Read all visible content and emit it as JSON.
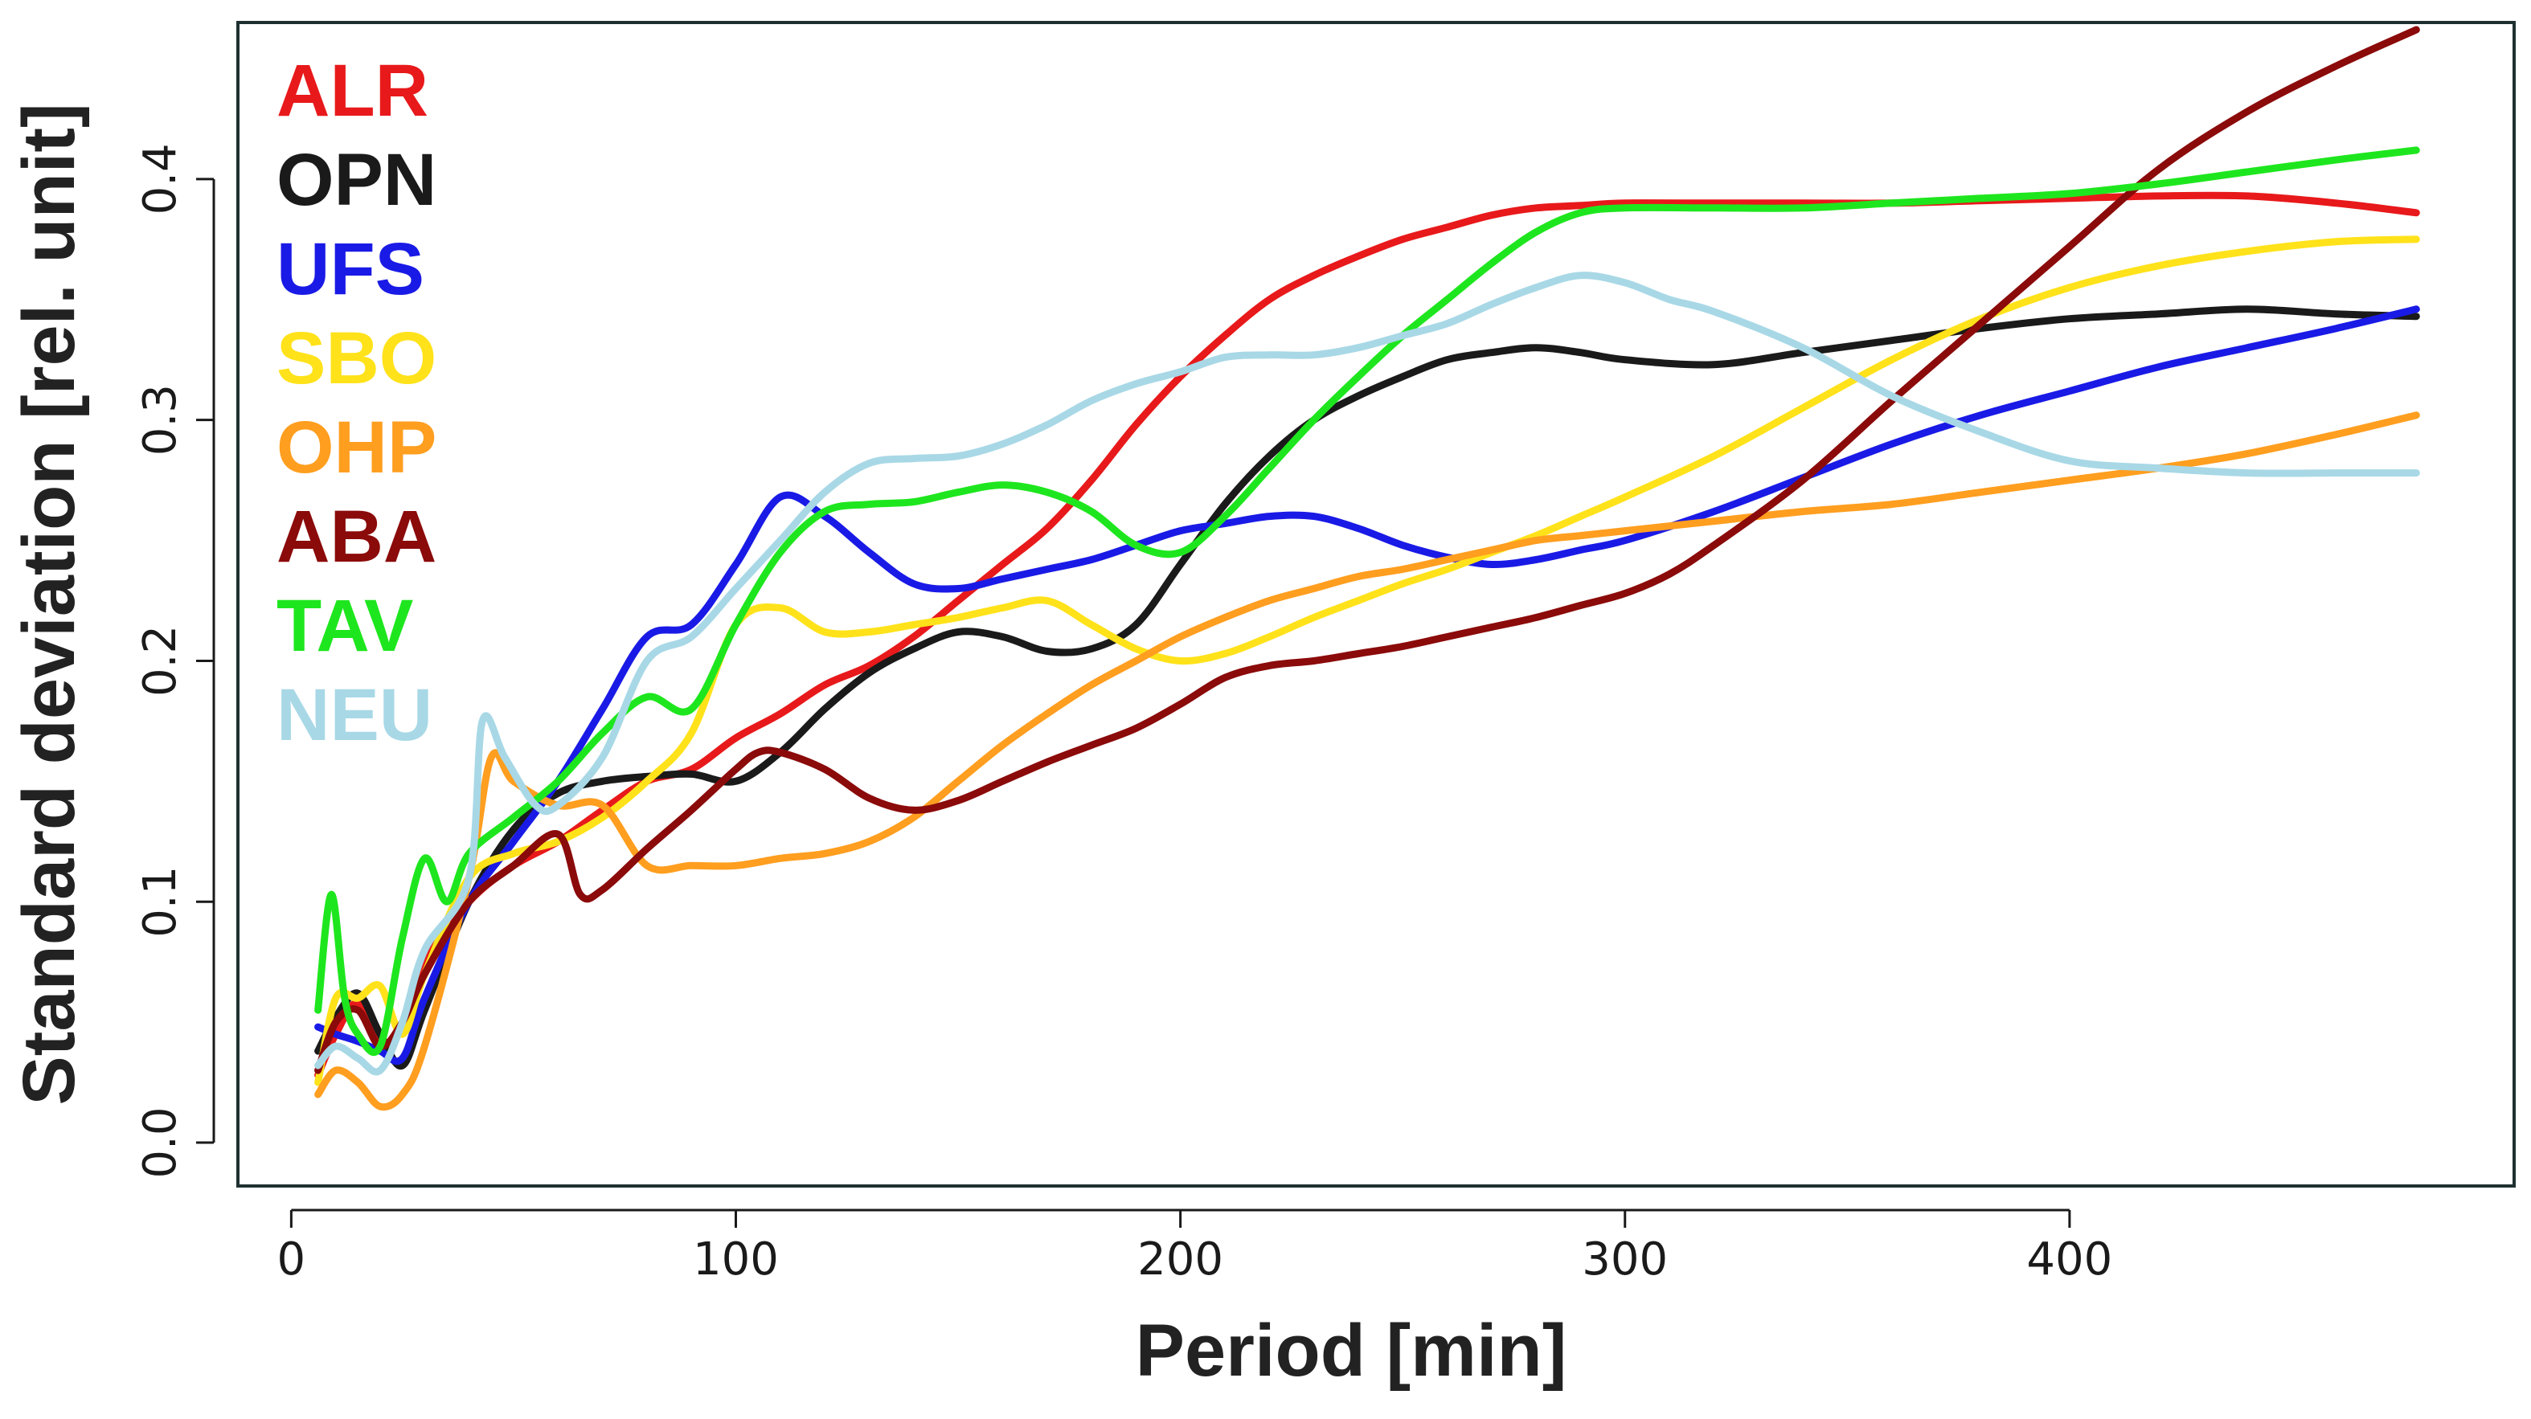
{
  "chart_data": {
    "type": "line",
    "xlabel": "Period [min]",
    "ylabel": "Standard deviation [rel. unit]",
    "xlim": [
      -12,
      500
    ],
    "ylim": [
      -0.018,
      0.465
    ],
    "xticks": [
      0,
      100,
      200,
      300,
      400
    ],
    "xtick_labels": [
      "0",
      "100",
      "200",
      "300",
      "400"
    ],
    "yticks": [
      0.0,
      0.1,
      0.2,
      0.3,
      0.4
    ],
    "ytick_labels": [
      "0.0",
      "0.1",
      "0.2",
      "0.3",
      "0.4"
    ],
    "grid": false,
    "legend_position": "top-left",
    "series": [
      {
        "name": "ALR",
        "color": "#e8191b",
        "x": [
          6,
          10,
          15,
          20,
          25,
          30,
          40,
          50,
          60,
          70,
          80,
          90,
          100,
          110,
          120,
          130,
          140,
          150,
          160,
          170,
          180,
          190,
          200,
          210,
          220,
          230,
          240,
          250,
          260,
          270,
          280,
          290,
          300,
          320,
          340,
          360,
          380,
          400,
          420,
          440,
          460,
          478
        ],
        "y": [
          0.028,
          0.045,
          0.058,
          0.04,
          0.048,
          0.075,
          0.1,
          0.115,
          0.125,
          0.138,
          0.15,
          0.155,
          0.168,
          0.178,
          0.19,
          0.198,
          0.21,
          0.225,
          0.24,
          0.255,
          0.275,
          0.298,
          0.318,
          0.335,
          0.35,
          0.36,
          0.368,
          0.375,
          0.38,
          0.385,
          0.388,
          0.389,
          0.39,
          0.39,
          0.39,
          0.39,
          0.391,
          0.392,
          0.393,
          0.393,
          0.39,
          0.386
        ]
      },
      {
        "name": "OPN",
        "color": "#1a1a1a",
        "x": [
          6,
          10,
          15,
          20,
          25,
          30,
          40,
          50,
          60,
          70,
          80,
          90,
          100,
          110,
          120,
          130,
          140,
          150,
          160,
          170,
          180,
          190,
          200,
          210,
          220,
          230,
          240,
          250,
          260,
          270,
          280,
          290,
          300,
          320,
          340,
          360,
          380,
          400,
          420,
          440,
          460,
          478
        ],
        "y": [
          0.038,
          0.052,
          0.062,
          0.045,
          0.032,
          0.055,
          0.1,
          0.13,
          0.145,
          0.15,
          0.152,
          0.153,
          0.15,
          0.162,
          0.18,
          0.195,
          0.205,
          0.212,
          0.21,
          0.204,
          0.205,
          0.215,
          0.24,
          0.265,
          0.285,
          0.3,
          0.31,
          0.318,
          0.325,
          0.328,
          0.33,
          0.328,
          0.325,
          0.323,
          0.328,
          0.333,
          0.338,
          0.342,
          0.344,
          0.346,
          0.344,
          0.343
        ]
      },
      {
        "name": "UFS",
        "color": "#1a1ae6",
        "x": [
          6,
          10,
          15,
          20,
          25,
          30,
          40,
          50,
          60,
          70,
          80,
          90,
          100,
          110,
          120,
          130,
          140,
          150,
          160,
          170,
          180,
          190,
          200,
          210,
          220,
          230,
          240,
          250,
          260,
          270,
          280,
          290,
          300,
          320,
          340,
          360,
          380,
          400,
          420,
          440,
          460,
          478
        ],
        "y": [
          0.048,
          0.045,
          0.042,
          0.038,
          0.035,
          0.06,
          0.1,
          0.125,
          0.15,
          0.18,
          0.21,
          0.215,
          0.24,
          0.268,
          0.26,
          0.245,
          0.232,
          0.23,
          0.234,
          0.238,
          0.242,
          0.248,
          0.254,
          0.257,
          0.26,
          0.26,
          0.255,
          0.248,
          0.243,
          0.24,
          0.242,
          0.246,
          0.25,
          0.262,
          0.276,
          0.29,
          0.302,
          0.312,
          0.322,
          0.33,
          0.338,
          0.346
        ]
      },
      {
        "name": "SBO",
        "color": "#ffe21a",
        "x": [
          6,
          10,
          15,
          20,
          25,
          30,
          40,
          50,
          60,
          70,
          80,
          90,
          100,
          110,
          120,
          130,
          140,
          150,
          160,
          170,
          180,
          190,
          200,
          210,
          220,
          230,
          240,
          250,
          260,
          270,
          280,
          290,
          300,
          320,
          340,
          360,
          380,
          400,
          420,
          440,
          460,
          478
        ],
        "y": [
          0.025,
          0.06,
          0.06,
          0.065,
          0.045,
          0.07,
          0.11,
          0.12,
          0.125,
          0.135,
          0.15,
          0.17,
          0.215,
          0.222,
          0.212,
          0.212,
          0.215,
          0.218,
          0.222,
          0.225,
          0.215,
          0.205,
          0.2,
          0.203,
          0.21,
          0.218,
          0.225,
          0.232,
          0.238,
          0.245,
          0.252,
          0.26,
          0.268,
          0.285,
          0.305,
          0.325,
          0.342,
          0.355,
          0.364,
          0.37,
          0.374,
          0.375
        ]
      },
      {
        "name": "OHP",
        "color": "#ff9e1f",
        "x": [
          6,
          10,
          15,
          20,
          25,
          30,
          40,
          45,
          50,
          60,
          70,
          80,
          90,
          100,
          110,
          120,
          130,
          140,
          150,
          160,
          170,
          180,
          190,
          200,
          210,
          220,
          230,
          240,
          250,
          260,
          270,
          280,
          290,
          300,
          320,
          340,
          360,
          380,
          400,
          420,
          440,
          460,
          478
        ],
        "y": [
          0.02,
          0.03,
          0.025,
          0.015,
          0.02,
          0.04,
          0.11,
          0.16,
          0.15,
          0.14,
          0.14,
          0.115,
          0.115,
          0.115,
          0.118,
          0.12,
          0.125,
          0.135,
          0.15,
          0.165,
          0.178,
          0.19,
          0.2,
          0.21,
          0.218,
          0.225,
          0.23,
          0.235,
          0.238,
          0.242,
          0.246,
          0.25,
          0.252,
          0.254,
          0.258,
          0.262,
          0.265,
          0.27,
          0.275,
          0.28,
          0.286,
          0.294,
          0.302
        ]
      },
      {
        "name": "ABA",
        "color": "#8b0a0a",
        "x": [
          6,
          10,
          15,
          20,
          25,
          30,
          40,
          50,
          60,
          65,
          70,
          80,
          90,
          100,
          105,
          110,
          120,
          130,
          140,
          150,
          160,
          170,
          180,
          190,
          200,
          210,
          220,
          230,
          240,
          250,
          260,
          270,
          280,
          290,
          300,
          310,
          320,
          340,
          360,
          380,
          400,
          420,
          440,
          460,
          478
        ],
        "y": [
          0.03,
          0.05,
          0.055,
          0.04,
          0.05,
          0.07,
          0.1,
          0.115,
          0.128,
          0.103,
          0.105,
          0.122,
          0.138,
          0.155,
          0.162,
          0.162,
          0.155,
          0.143,
          0.138,
          0.142,
          0.15,
          0.158,
          0.165,
          0.172,
          0.182,
          0.193,
          0.198,
          0.2,
          0.203,
          0.206,
          0.21,
          0.214,
          0.218,
          0.223,
          0.228,
          0.236,
          0.248,
          0.275,
          0.308,
          0.34,
          0.372,
          0.404,
          0.428,
          0.447,
          0.462
        ]
      },
      {
        "name": "TAV",
        "color": "#1ee61e",
        "x": [
          6,
          9,
          12,
          15,
          20,
          25,
          30,
          35,
          40,
          50,
          60,
          70,
          80,
          90,
          100,
          110,
          120,
          130,
          140,
          150,
          160,
          170,
          180,
          190,
          200,
          210,
          220,
          230,
          240,
          250,
          260,
          270,
          280,
          290,
          300,
          320,
          340,
          360,
          380,
          400,
          420,
          440,
          460,
          478
        ],
        "y": [
          0.055,
          0.103,
          0.06,
          0.045,
          0.04,
          0.085,
          0.118,
          0.1,
          0.12,
          0.135,
          0.15,
          0.17,
          0.185,
          0.18,
          0.215,
          0.245,
          0.262,
          0.265,
          0.266,
          0.27,
          0.273,
          0.27,
          0.262,
          0.248,
          0.245,
          0.26,
          0.28,
          0.3,
          0.318,
          0.335,
          0.35,
          0.365,
          0.378,
          0.386,
          0.388,
          0.388,
          0.388,
          0.39,
          0.392,
          0.394,
          0.398,
          0.403,
          0.408,
          0.412
        ]
      },
      {
        "name": "NEU",
        "color": "#a8d8e6",
        "x": [
          6,
          10,
          15,
          20,
          25,
          30,
          40,
          43,
          48,
          55,
          60,
          70,
          80,
          90,
          100,
          110,
          120,
          130,
          140,
          150,
          160,
          170,
          180,
          190,
          200,
          210,
          220,
          230,
          240,
          250,
          260,
          270,
          280,
          290,
          300,
          310,
          320,
          340,
          360,
          380,
          400,
          420,
          440,
          460,
          478
        ],
        "y": [
          0.032,
          0.04,
          0.035,
          0.03,
          0.05,
          0.08,
          0.11,
          0.175,
          0.16,
          0.14,
          0.14,
          0.16,
          0.2,
          0.21,
          0.23,
          0.25,
          0.27,
          0.282,
          0.284,
          0.285,
          0.29,
          0.298,
          0.308,
          0.315,
          0.32,
          0.326,
          0.327,
          0.327,
          0.33,
          0.335,
          0.34,
          0.348,
          0.355,
          0.36,
          0.357,
          0.35,
          0.345,
          0.33,
          0.31,
          0.295,
          0.283,
          0.28,
          0.278,
          0.278,
          0.278
        ]
      }
    ]
  }
}
